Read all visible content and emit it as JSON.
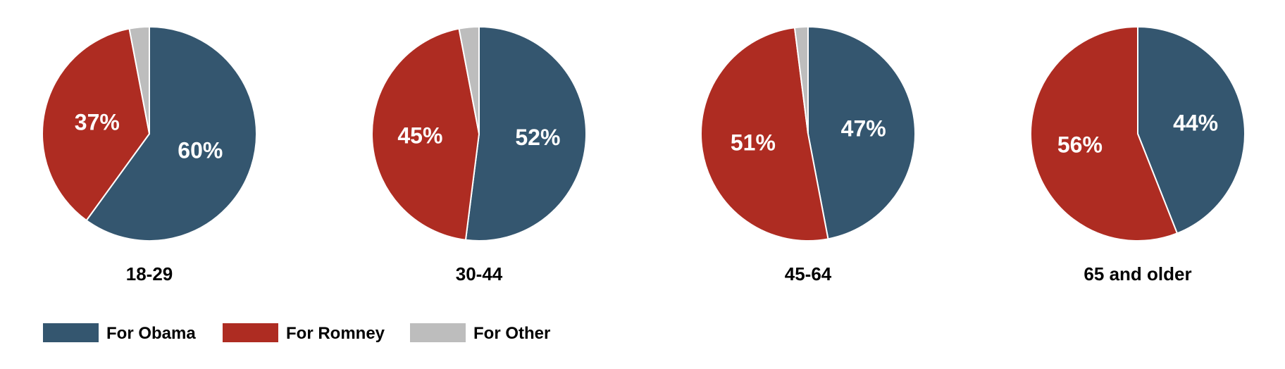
{
  "chart_data": [
    {
      "type": "pie",
      "title": "18-29",
      "slices": [
        {
          "name": "For Obama",
          "value": 60,
          "label": "60%"
        },
        {
          "name": "For Romney",
          "value": 37,
          "label": "37%"
        },
        {
          "name": "For Other",
          "value": 3,
          "label": ""
        }
      ]
    },
    {
      "type": "pie",
      "title": "30-44",
      "slices": [
        {
          "name": "For Obama",
          "value": 52,
          "label": "52%"
        },
        {
          "name": "For Romney",
          "value": 45,
          "label": "45%"
        },
        {
          "name": "For Other",
          "value": 3,
          "label": ""
        }
      ]
    },
    {
      "type": "pie",
      "title": "45-64",
      "slices": [
        {
          "name": "For Obama",
          "value": 47,
          "label": "47%"
        },
        {
          "name": "For Romney",
          "value": 51,
          "label": "51%"
        },
        {
          "name": "For Other",
          "value": 2,
          "label": ""
        }
      ]
    },
    {
      "type": "pie",
      "title": "65 and older",
      "slices": [
        {
          "name": "For Obama",
          "value": 44,
          "label": "44%"
        },
        {
          "name": "For Romney",
          "value": 56,
          "label": "56%"
        },
        {
          "name": "For Other",
          "value": 0,
          "label": ""
        }
      ]
    }
  ],
  "legend": {
    "placement": "bottom-left",
    "items": [
      {
        "label": "For Obama",
        "color": "#34566f"
      },
      {
        "label": "For Romney",
        "color": "#ae2c22"
      },
      {
        "label": "For Other",
        "color": "#bdbdbd"
      }
    ]
  },
  "colors": {
    "For Obama": "#34566f",
    "For Romney": "#ae2c22",
    "For Other": "#bdbdbd"
  }
}
